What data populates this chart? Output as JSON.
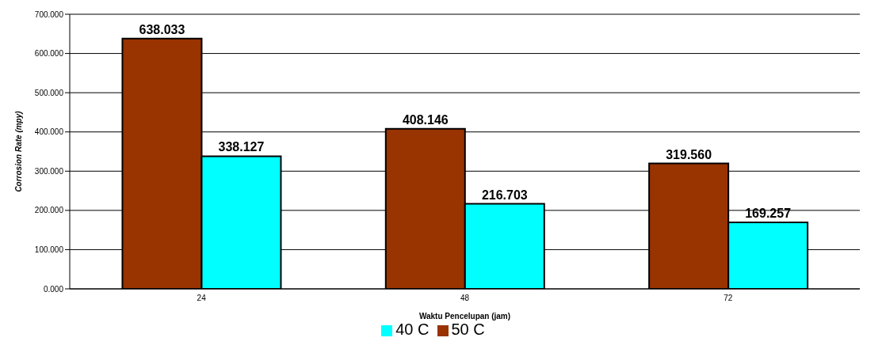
{
  "chart_data": {
    "type": "bar",
    "xlabel": "Waktu Pencelupan (jam)",
    "ylabel": "Corrosion Rate (mpy)",
    "categories": [
      "24",
      "48",
      "72"
    ],
    "series": [
      {
        "name": "50 C",
        "color": "#993300",
        "values": [
          638.033,
          408.146,
          319.56
        ],
        "value_labels": [
          "638.033",
          "408.146",
          "319.560"
        ]
      },
      {
        "name": "40 C",
        "color": "#00ffff",
        "values": [
          338.127,
          216.703,
          169.257
        ],
        "value_labels": [
          "338.127",
          "216.703",
          "169.257"
        ]
      }
    ],
    "ylim": [
      0,
      700
    ],
    "yticks": [
      {
        "value": 0,
        "label": "0.000"
      },
      {
        "value": 100,
        "label": "100.000"
      },
      {
        "value": 200,
        "label": "200.000"
      },
      {
        "value": 300,
        "label": "300.000"
      },
      {
        "value": 400,
        "label": "400.000"
      },
      {
        "value": 500,
        "label": "500.000"
      },
      {
        "value": 600,
        "label": "600.000"
      },
      {
        "value": 700,
        "label": "700.000"
      }
    ],
    "grid": "y",
    "legend": "bottom"
  }
}
